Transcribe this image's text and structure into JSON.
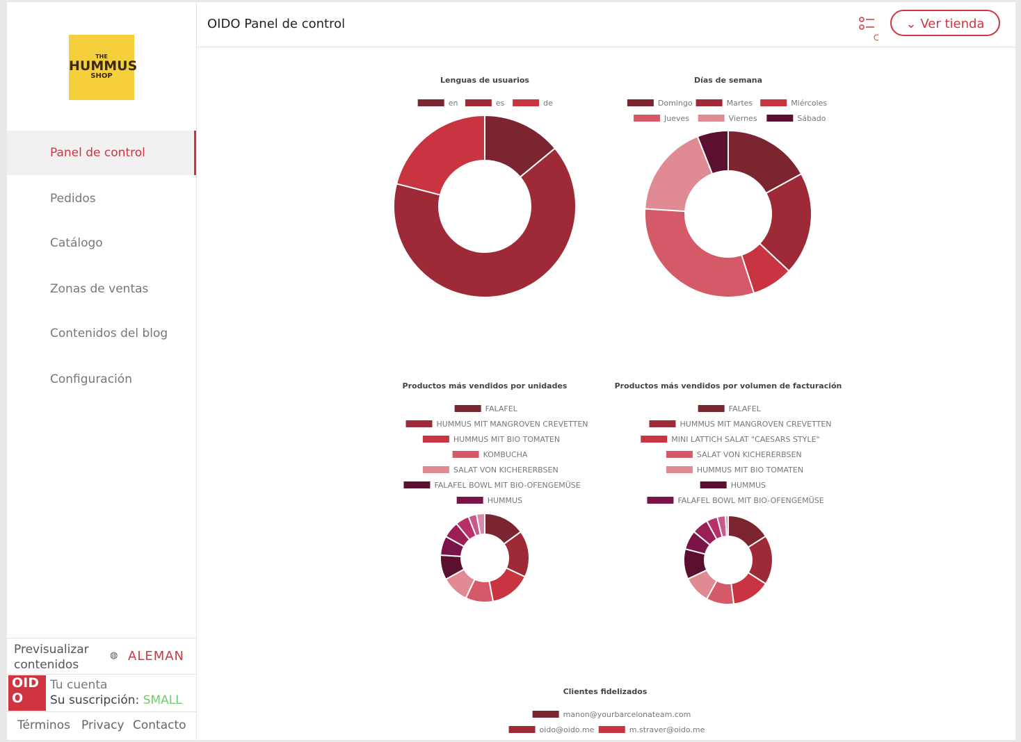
{
  "header": {
    "title": "OIDO Panel de control",
    "button": "Ver tienda"
  },
  "logo": {
    "line1": "THE",
    "line2": "HUMMUS",
    "line3": "SHOP"
  },
  "nav": [
    "Panel de control",
    "Pedidos",
    "Catálogo",
    "Zonas de ventas",
    "Contenidos del blog",
    "Configuración"
  ],
  "footer": {
    "preview": "Previsualizar contenidos",
    "language": "ALEMAN",
    "brand_top": "OID",
    "brand_bottom": "O",
    "account": "Tu cuenta",
    "subscription_label": "Su suscripción:",
    "plan": "SMALL",
    "links": [
      "Términos",
      "Privacy",
      "Contacto"
    ]
  },
  "chart_data": [
    {
      "type": "doughnut",
      "title": "Lenguas de usuarios",
      "categories": [
        "en",
        "es",
        "de"
      ],
      "values": [
        14,
        65,
        21
      ],
      "colors": [
        "#7a2530",
        "#9e2a38",
        "#c8343f"
      ]
    },
    {
      "type": "doughnut",
      "title": "Días de semana",
      "categories": [
        "Domingo",
        "Martes",
        "Miércoles",
        "Jueves",
        "Viernes",
        "Sábado"
      ],
      "values": [
        17,
        20,
        8,
        31,
        18,
        6
      ],
      "colors": [
        "#7a2530",
        "#9e2a38",
        "#c8343f",
        "#d45a68",
        "#e08a93",
        "#5c1030"
      ]
    },
    {
      "type": "doughnut",
      "title": "Productos más vendidos por unidades",
      "categories": [
        "FALAFEL",
        "HUMMUS MIT MANGROVEN CREVETTEN",
        "HUMMUS MIT BIO TOMATEN",
        "KOMBUCHA",
        "SALAT VON KICHERERBSEN",
        "FALAFEL BOWL MIT BIO-OFENGEMÜSE",
        "HUMMUS",
        null,
        null,
        null,
        null
      ],
      "values": [
        15,
        17,
        15,
        10,
        10,
        9,
        7,
        6,
        5,
        3,
        3
      ],
      "colors": [
        "#7a2530",
        "#9e2a38",
        "#c8343f",
        "#d45a68",
        "#e08a93",
        "#5c1030",
        "#7a1448",
        "#9a1f55",
        "#b8306a",
        "#c85a8a",
        "#d88aa8"
      ]
    },
    {
      "type": "doughnut",
      "title": "Productos más vendidos por volumen de facturación",
      "categories": [
        "FALAFEL",
        "HUMMUS MIT MANGROVEN CREVETTEN",
        "MINI LATTICH SALAT \"CAESARS STYLE\"",
        "SALAT VON KICHERERBSEN",
        "HUMMUS MIT BIO TOMATEN",
        "HUMMUS",
        "FALAFEL BOWL MIT BIO-OFENGEMÜSE",
        null,
        null,
        null,
        null
      ],
      "values": [
        16,
        18,
        14,
        10,
        10,
        11,
        7,
        6,
        4,
        3,
        1
      ],
      "colors": [
        "#7a2530",
        "#9e2a38",
        "#c8343f",
        "#d45a68",
        "#e08a93",
        "#5c1030",
        "#7a1448",
        "#9a1f55",
        "#b8306a",
        "#c85a8a",
        "#d88aa8"
      ]
    },
    {
      "type": "doughnut",
      "title": "Clientes fidelizados",
      "categories": [
        "manon@yourbarcelonateam.com",
        "oido@oido.me",
        "m.straver@oido.me"
      ],
      "colors": [
        "#7a2530",
        "#9e2a38",
        "#c8343f"
      ]
    }
  ]
}
